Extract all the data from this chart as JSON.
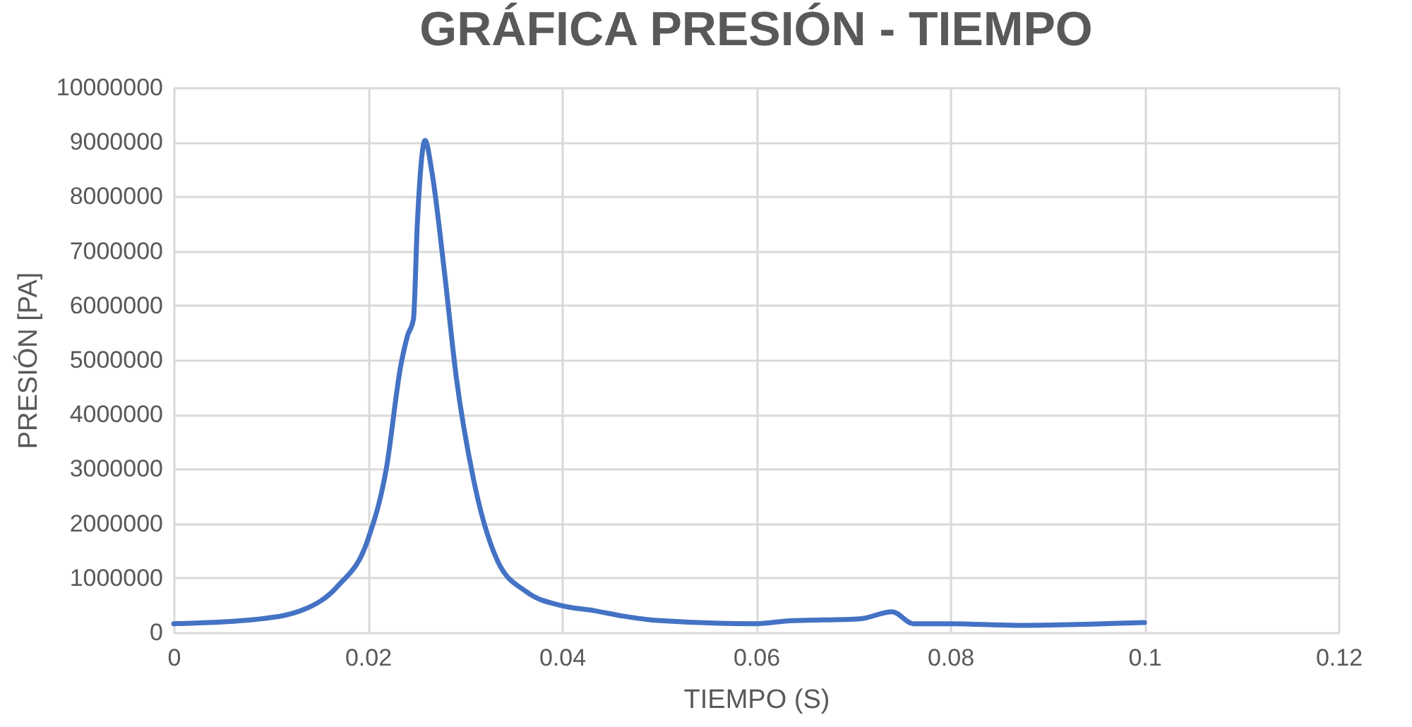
{
  "chart_data": {
    "type": "line",
    "title": "GRÁFICA PRESIÓN - TIEMPO",
    "xlabel": "TIEMPO (S)",
    "ylabel": "PRESIÓN [PA]",
    "x": [
      0,
      0.0085,
      0.0134,
      0.0169,
      0.02,
      0.0219,
      0.0234,
      0.0241,
      0.0247,
      0.0251,
      0.0259,
      0.0266,
      0.0279,
      0.0291,
      0.0309,
      0.0334,
      0.0363,
      0.04,
      0.0433,
      0.0463,
      0.0498,
      0.06,
      0.0632,
      0.0707,
      0.074,
      0.0762,
      0.0802,
      0.0867,
      0.1
    ],
    "series": [
      {
        "color": "#4472c4",
        "values": [
          160000,
          240000,
          420000,
          850000,
          1700000,
          3000000,
          4900000,
          5450000,
          5750000,
          7500000,
          9030000,
          8450000,
          6600000,
          4700000,
          2800000,
          1300000,
          750000,
          490000,
          400000,
          300000,
          220000,
          160000,
          210000,
          250000,
          380000,
          160000,
          160000,
          130000,
          180000
        ]
      }
    ],
    "xlim": [
      0,
      0.12
    ],
    "xticks": [
      0,
      0.02,
      0.04,
      0.06,
      0.08,
      0.1,
      0.12
    ],
    "ylim": [
      0,
      10000000
    ],
    "yticks": [
      0,
      1000000,
      2000000,
      3000000,
      4000000,
      5000000,
      6000000,
      7000000,
      8000000,
      9000000,
      10000000
    ],
    "grid": true,
    "marker": "none",
    "line_style": "solid"
  }
}
